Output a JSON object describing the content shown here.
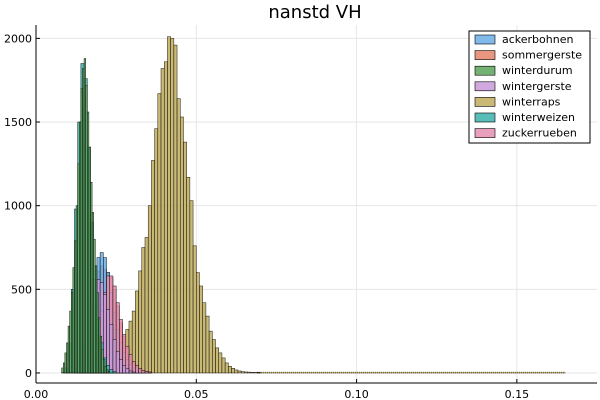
{
  "chart_data": {
    "type": "bar",
    "title": "nanstd VH",
    "xlabel": "",
    "ylabel": "",
    "xlim": [
      0,
      0.175
    ],
    "ylim": [
      -60,
      2080
    ],
    "x_ticks": [
      {
        "value": 0.0,
        "label": "0.00"
      },
      {
        "value": 0.05,
        "label": "0.05"
      },
      {
        "value": 0.1,
        "label": "0.10"
      },
      {
        "value": 0.15,
        "label": "0.15"
      }
    ],
    "y_ticks": [
      {
        "value": 0,
        "label": "0"
      },
      {
        "value": 500,
        "label": "500"
      },
      {
        "value": 1000,
        "label": "1000"
      },
      {
        "value": 1500,
        "label": "1500"
      },
      {
        "value": 2000,
        "label": "2000"
      }
    ],
    "grid": true,
    "legend_position": "top-right",
    "series": [
      {
        "name": "winterraps",
        "color": "#c0ad5c",
        "bin_width": 0.001,
        "bins": [
          [
            0.008,
            3
          ],
          [
            0.009,
            5
          ],
          [
            0.01,
            8
          ],
          [
            0.011,
            10
          ],
          [
            0.012,
            13
          ],
          [
            0.013,
            16
          ],
          [
            0.014,
            20
          ],
          [
            0.015,
            22
          ],
          [
            0.016,
            26
          ],
          [
            0.017,
            30
          ],
          [
            0.018,
            36
          ],
          [
            0.019,
            45
          ],
          [
            0.02,
            55
          ],
          [
            0.021,
            65
          ],
          [
            0.022,
            80
          ],
          [
            0.023,
            95
          ],
          [
            0.024,
            115
          ],
          [
            0.025,
            135
          ],
          [
            0.026,
            160
          ],
          [
            0.027,
            200
          ],
          [
            0.028,
            260
          ],
          [
            0.029,
            310
          ],
          [
            0.03,
            370
          ],
          [
            0.031,
            490
          ],
          [
            0.032,
            610
          ],
          [
            0.033,
            750
          ],
          [
            0.034,
            810
          ],
          [
            0.035,
            1000
          ],
          [
            0.036,
            1270
          ],
          [
            0.037,
            1460
          ],
          [
            0.038,
            1670
          ],
          [
            0.039,
            1820
          ],
          [
            0.04,
            1860
          ],
          [
            0.041,
            2010
          ],
          [
            0.042,
            2000
          ],
          [
            0.043,
            1960
          ],
          [
            0.044,
            1640
          ],
          [
            0.045,
            1530
          ],
          [
            0.046,
            1380
          ],
          [
            0.047,
            1170
          ],
          [
            0.048,
            1030
          ],
          [
            0.049,
            760
          ],
          [
            0.05,
            600
          ],
          [
            0.051,
            520
          ],
          [
            0.052,
            420
          ],
          [
            0.053,
            340
          ],
          [
            0.054,
            250
          ],
          [
            0.055,
            200
          ],
          [
            0.056,
            150
          ],
          [
            0.057,
            120
          ],
          [
            0.058,
            90
          ],
          [
            0.059,
            60
          ],
          [
            0.06,
            40
          ],
          [
            0.061,
            28
          ],
          [
            0.062,
            18
          ],
          [
            0.063,
            12
          ],
          [
            0.064,
            8
          ],
          [
            0.065,
            6
          ],
          [
            0.066,
            5
          ],
          [
            0.067,
            4
          ],
          [
            0.068,
            3
          ],
          [
            0.069,
            3
          ]
        ]
      },
      {
        "name": "sommergerste",
        "color": "#e4846a",
        "bin_width": 0.001,
        "bins": [
          [
            0.013,
            20
          ],
          [
            0.014,
            50
          ],
          [
            0.015,
            130
          ],
          [
            0.016,
            240
          ],
          [
            0.017,
            380
          ],
          [
            0.018,
            520
          ],
          [
            0.019,
            610
          ],
          [
            0.02,
            640
          ],
          [
            0.021,
            620
          ],
          [
            0.022,
            600
          ],
          [
            0.023,
            570
          ],
          [
            0.024,
            500
          ],
          [
            0.025,
            400
          ],
          [
            0.026,
            300
          ],
          [
            0.027,
            220
          ],
          [
            0.028,
            150
          ],
          [
            0.029,
            100
          ],
          [
            0.03,
            60
          ],
          [
            0.031,
            35
          ],
          [
            0.032,
            20
          ],
          [
            0.033,
            12
          ],
          [
            0.034,
            8
          ],
          [
            0.035,
            5
          ]
        ]
      },
      {
        "name": "ackerbohnen",
        "color": "#6aaee8",
        "bin_width": 0.001,
        "bins": [
          [
            0.012,
            30
          ],
          [
            0.013,
            80
          ],
          [
            0.014,
            160
          ],
          [
            0.015,
            280
          ],
          [
            0.016,
            420
          ],
          [
            0.017,
            550
          ],
          [
            0.018,
            640
          ],
          [
            0.019,
            690
          ],
          [
            0.02,
            720
          ],
          [
            0.021,
            690
          ],
          [
            0.022,
            600
          ],
          [
            0.023,
            480
          ],
          [
            0.024,
            360
          ],
          [
            0.025,
            260
          ],
          [
            0.026,
            180
          ],
          [
            0.027,
            120
          ],
          [
            0.028,
            80
          ],
          [
            0.029,
            50
          ],
          [
            0.03,
            30
          ],
          [
            0.031,
            18
          ],
          [
            0.032,
            10
          ],
          [
            0.033,
            6
          ]
        ]
      },
      {
        "name": "zuckerrueben",
        "color": "#e58fb0",
        "bin_width": 0.001,
        "bins": [
          [
            0.016,
            20
          ],
          [
            0.017,
            70
          ],
          [
            0.018,
            150
          ],
          [
            0.019,
            250
          ],
          [
            0.02,
            370
          ],
          [
            0.021,
            480
          ],
          [
            0.022,
            580
          ],
          [
            0.023,
            580
          ],
          [
            0.024,
            520
          ],
          [
            0.025,
            420
          ],
          [
            0.026,
            320
          ],
          [
            0.027,
            230
          ],
          [
            0.028,
            160
          ],
          [
            0.029,
            110
          ],
          [
            0.03,
            70
          ],
          [
            0.031,
            45
          ],
          [
            0.032,
            28
          ],
          [
            0.033,
            16
          ],
          [
            0.034,
            10
          ],
          [
            0.035,
            6
          ]
        ]
      },
      {
        "name": "wintergerste",
        "color": "#c79ad9",
        "bin_width": 0.001,
        "bins": [
          [
            0.014,
            40
          ],
          [
            0.015,
            120
          ],
          [
            0.016,
            250
          ],
          [
            0.017,
            400
          ],
          [
            0.018,
            520
          ],
          [
            0.019,
            560
          ],
          [
            0.02,
            540
          ],
          [
            0.021,
            470
          ],
          [
            0.022,
            380
          ],
          [
            0.023,
            290
          ],
          [
            0.024,
            200
          ],
          [
            0.025,
            130
          ],
          [
            0.026,
            80
          ],
          [
            0.027,
            45
          ],
          [
            0.028,
            25
          ],
          [
            0.029,
            12
          ],
          [
            0.03,
            6
          ]
        ]
      },
      {
        "name": "winterweizen",
        "color": "#3bb0ab",
        "bin_width": 0.001,
        "bins": [
          [
            0.009,
            30
          ],
          [
            0.01,
            180
          ],
          [
            0.011,
            500
          ],
          [
            0.012,
            980
          ],
          [
            0.013,
            1500
          ],
          [
            0.014,
            1850
          ],
          [
            0.015,
            1760
          ],
          [
            0.016,
            1350
          ],
          [
            0.017,
            900
          ],
          [
            0.018,
            560
          ],
          [
            0.019,
            320
          ],
          [
            0.02,
            180
          ],
          [
            0.021,
            90
          ],
          [
            0.022,
            45
          ],
          [
            0.023,
            20
          ],
          [
            0.024,
            8
          ]
        ]
      },
      {
        "name": "winterdurum",
        "color": "#5aa55a",
        "bin_width": 0.0005,
        "bins": [
          [
            0.008,
            30
          ],
          [
            0.0085,
            60
          ],
          [
            0.009,
            120
          ],
          [
            0.0095,
            180
          ],
          [
            0.01,
            280
          ],
          [
            0.0105,
            370
          ],
          [
            0.011,
            480
          ],
          [
            0.0115,
            630
          ],
          [
            0.012,
            790
          ],
          [
            0.0125,
            1000
          ],
          [
            0.013,
            1250
          ],
          [
            0.0135,
            1500
          ],
          [
            0.014,
            1700
          ],
          [
            0.0145,
            1820
          ],
          [
            0.015,
            1880
          ],
          [
            0.0155,
            1720
          ],
          [
            0.016,
            1560
          ],
          [
            0.0165,
            1350
          ],
          [
            0.017,
            1140
          ],
          [
            0.0175,
            960
          ],
          [
            0.018,
            800
          ],
          [
            0.0185,
            640
          ],
          [
            0.019,
            480
          ],
          [
            0.0195,
            330
          ],
          [
            0.02,
            220
          ],
          [
            0.0205,
            140
          ],
          [
            0.021,
            80
          ],
          [
            0.0215,
            40
          ],
          [
            0.022,
            20
          ],
          [
            0.0225,
            10
          ]
        ]
      }
    ],
    "long_tail": {
      "from": 0.069,
      "to": 0.165,
      "value": 2,
      "color": "#c0ad5c"
    },
    "legend": [
      {
        "name": "ackerbohnen",
        "color": "#6aaee8"
      },
      {
        "name": "sommergerste",
        "color": "#e4846a"
      },
      {
        "name": "winterdurum",
        "color": "#5aa55a"
      },
      {
        "name": "wintergerste",
        "color": "#c79ad9"
      },
      {
        "name": "winterraps",
        "color": "#c0ad5c"
      },
      {
        "name": "winterweizen",
        "color": "#3bb0ab"
      },
      {
        "name": "zuckerrueben",
        "color": "#e58fb0"
      }
    ]
  }
}
